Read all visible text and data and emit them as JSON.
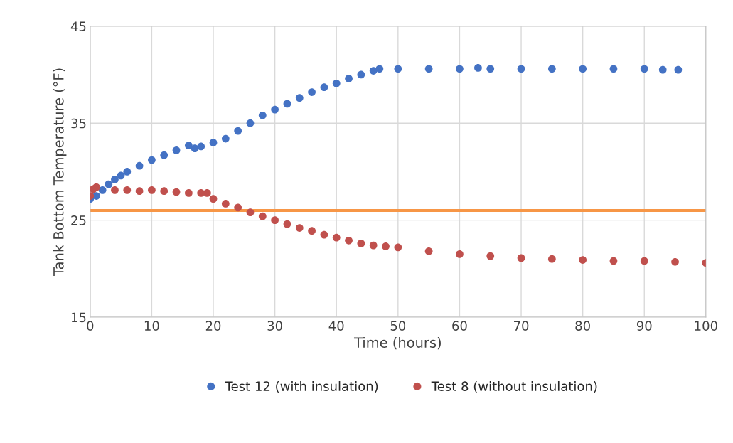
{
  "chart_data": {
    "type": "scatter",
    "xlabel": "Time (hours)",
    "ylabel": "Tank Bottom Temperature (°F)",
    "xlim": [
      0,
      100
    ],
    "xticks": [
      0,
      10,
      20,
      30,
      40,
      50,
      60,
      70,
      80,
      90,
      100
    ],
    "ylim": [
      15,
      45
    ],
    "yticks": [
      15,
      25,
      35,
      45
    ],
    "grid": true,
    "legend": "bottom",
    "marker": "circle",
    "ref_lines": [
      {
        "axis": "y",
        "value": 26,
        "color": "#f79646",
        "line_style": "solid"
      }
    ],
    "series": [
      {
        "name": "Test 12 (with insulation)",
        "color": "#4472c4",
        "x": [
          0,
          1,
          2,
          3,
          4,
          5,
          6,
          8,
          10,
          12,
          14,
          16,
          17,
          18,
          20,
          22,
          24,
          26,
          28,
          30,
          32,
          34,
          36,
          38,
          40,
          42,
          44,
          46,
          47,
          50,
          55,
          60,
          63,
          65,
          70,
          75,
          80,
          85,
          90,
          93,
          95.5
        ],
        "values": [
          27.2,
          27.5,
          28.1,
          28.7,
          29.2,
          29.6,
          30.0,
          30.6,
          31.2,
          31.7,
          32.2,
          32.7,
          32.4,
          32.6,
          33.0,
          33.4,
          34.2,
          35.0,
          35.8,
          36.4,
          37.0,
          37.6,
          38.2,
          38.7,
          39.1,
          39.6,
          40.0,
          40.4,
          40.6,
          40.6,
          40.6,
          40.6,
          40.7,
          40.6,
          40.6,
          40.6,
          40.6,
          40.6,
          40.6,
          40.5,
          40.5
        ]
      },
      {
        "name": "Test 8 (without insulation)",
        "color": "#c0504d",
        "x": [
          0,
          0.5,
          1,
          4,
          6,
          8,
          10,
          12,
          14,
          16,
          18,
          19,
          20,
          22,
          24,
          26,
          28,
          30,
          32,
          34,
          36,
          38,
          40,
          42,
          44,
          46,
          48,
          50,
          55,
          60,
          65,
          70,
          75,
          80,
          85,
          90,
          95,
          100
        ],
        "values": [
          27.5,
          28.2,
          28.4,
          28.1,
          28.1,
          28.0,
          28.1,
          28.0,
          27.9,
          27.8,
          27.8,
          27.8,
          27.2,
          26.7,
          26.3,
          25.8,
          25.4,
          25.0,
          24.6,
          24.2,
          23.9,
          23.5,
          23.2,
          22.9,
          22.6,
          22.4,
          22.3,
          22.2,
          21.8,
          21.5,
          21.3,
          21.1,
          21.0,
          20.9,
          20.8,
          20.8,
          20.7,
          20.6
        ]
      }
    ]
  }
}
